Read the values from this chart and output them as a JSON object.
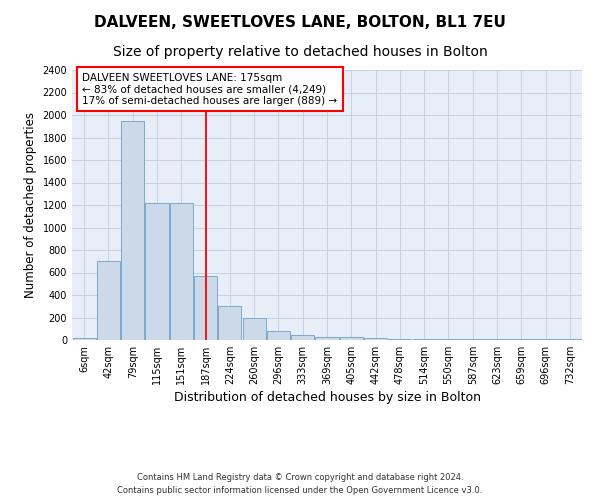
{
  "title1": "DALVEEN, SWEETLOVES LANE, BOLTON, BL1 7EU",
  "title2": "Size of property relative to detached houses in Bolton",
  "xlabel": "Distribution of detached houses by size in Bolton",
  "ylabel": "Number of detached properties",
  "bar_labels": [
    "6sqm",
    "42sqm",
    "79sqm",
    "115sqm",
    "151sqm",
    "187sqm",
    "224sqm",
    "260sqm",
    "296sqm",
    "333sqm",
    "369sqm",
    "405sqm",
    "442sqm",
    "478sqm",
    "514sqm",
    "550sqm",
    "587sqm",
    "623sqm",
    "659sqm",
    "696sqm",
    "732sqm"
  ],
  "bar_values": [
    20,
    700,
    1950,
    1220,
    1220,
    570,
    300,
    200,
    80,
    45,
    30,
    30,
    20,
    5,
    5,
    5,
    5,
    5,
    5,
    5,
    5
  ],
  "bar_color": "#ccd9e8",
  "bar_edge_color": "#7aaacf",
  "grid_color": "#c0cce0",
  "background_color": "#e8eef8",
  "red_line_x": 5.0,
  "annotation_line1": "DALVEEN SWEETLOVES LANE: 175sqm",
  "annotation_line2": "← 83% of detached houses are smaller (4,249)",
  "annotation_line3": "17% of semi-detached houses are larger (889) →",
  "footer1": "Contains HM Land Registry data © Crown copyright and database right 2024.",
  "footer2": "Contains public sector information licensed under the Open Government Licence v3.0.",
  "ylim_max": 2400,
  "yticks": [
    0,
    200,
    400,
    600,
    800,
    1000,
    1200,
    1400,
    1600,
    1800,
    2000,
    2200,
    2400
  ],
  "title1_fontsize": 11,
  "title2_fontsize": 10,
  "xlabel_fontsize": 9,
  "ylabel_fontsize": 8.5,
  "tick_fontsize": 7,
  "ann_fontsize": 7.5,
  "footer_fontsize": 6
}
